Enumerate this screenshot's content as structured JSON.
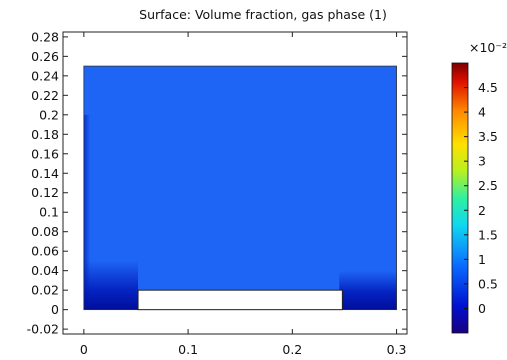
{
  "chart_data": {
    "type": "heatmap",
    "title": "Surface: Volume fraction, gas phase (1)",
    "xlabel": "",
    "ylabel": "",
    "xlim": [
      -0.02,
      0.31
    ],
    "ylim": [
      -0.025,
      0.285
    ],
    "x_ticks": [
      0,
      0.1,
      0.2,
      0.3
    ],
    "x_tick_labels": [
      "0",
      "0.1",
      "0.2",
      "0.3"
    ],
    "y_ticks": [
      -0.02,
      0,
      0.02,
      0.04,
      0.06,
      0.08,
      0.1,
      0.12,
      0.14,
      0.16,
      0.18,
      0.2,
      0.22,
      0.24,
      0.26,
      0.28
    ],
    "y_tick_labels": [
      "-0.02",
      "0",
      "0.02",
      "0.04",
      "0.06",
      "0.08",
      "0.1",
      "0.12",
      "0.14",
      "0.16",
      "0.18",
      "0.2",
      "0.22",
      "0.24",
      "0.26",
      "0.28"
    ],
    "domain": {
      "x": [
        0,
        0.3
      ],
      "y": [
        0,
        0.25
      ]
    },
    "obstacle": {
      "x": [
        0.052,
        0.248
      ],
      "y": [
        0,
        0.02
      ]
    },
    "field_value_typical": 0.012,
    "field_value_low": 0.0,
    "colorbar": {
      "multiplier": "×10⁻²",
      "range": [
        -0.5,
        5
      ],
      "ticks": [
        0,
        0.5,
        1,
        1.5,
        2,
        2.5,
        3,
        3.5,
        4,
        4.5
      ],
      "tick_labels": [
        "0",
        "0.5",
        "1",
        "1.5",
        "2",
        "2.5",
        "3",
        "3.5",
        "4",
        "4.5"
      ],
      "colormap": "rainbow"
    }
  }
}
